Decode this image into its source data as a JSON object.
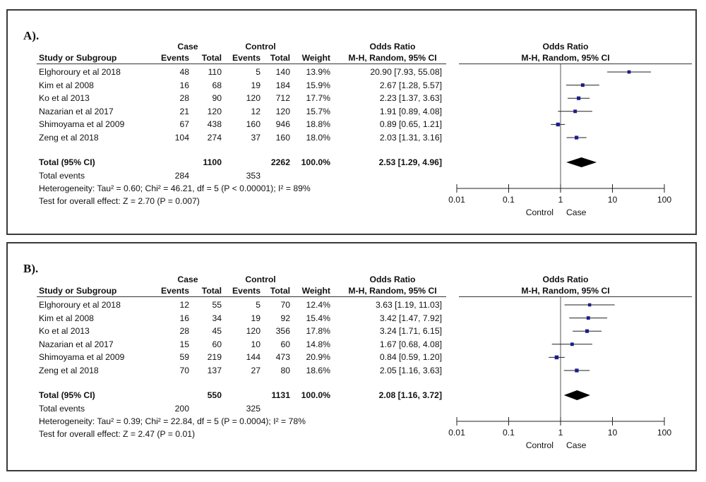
{
  "headers": {
    "case": "Case",
    "control": "Control",
    "or_top": "Odds Ratio",
    "study": "Study or Subgroup",
    "events": "Events",
    "total": "Total",
    "weight": "Weight",
    "ci": "M-H, Random, 95% CI"
  },
  "axis": {
    "ticks": [
      "0.01",
      "0.1",
      "1",
      "10",
      "100"
    ],
    "left_label": "Control",
    "right_label": "Case"
  },
  "colors": {
    "square": "#1c1c8c",
    "diamond": "#000000",
    "border": "#3a3a3a"
  },
  "chart_data": [
    {
      "panel": "A).",
      "type": "forest",
      "x_scale": "log",
      "xlim": [
        0.01,
        100
      ],
      "studies": [
        {
          "name": "Elghoroury et al 2018",
          "case_events": "48",
          "case_total": "110",
          "ctrl_events": "5",
          "ctrl_total": "140",
          "weight": "13.9%",
          "ci_text": "20.90 [7.93, 55.08]",
          "or": 20.9,
          "lo": 7.93,
          "hi": 55.08
        },
        {
          "name": "Kim et al 2008",
          "case_events": "16",
          "case_total": "68",
          "ctrl_events": "19",
          "ctrl_total": "184",
          "weight": "15.9%",
          "ci_text": "2.67 [1.28, 5.57]",
          "or": 2.67,
          "lo": 1.28,
          "hi": 5.57
        },
        {
          "name": "Ko et al 2013",
          "case_events": "28",
          "case_total": "90",
          "ctrl_events": "120",
          "ctrl_total": "712",
          "weight": "17.7%",
          "ci_text": "2.23 [1.37, 3.63]",
          "or": 2.23,
          "lo": 1.37,
          "hi": 3.63
        },
        {
          "name": "Nazarian et al 2017",
          "case_events": "21",
          "case_total": "120",
          "ctrl_events": "12",
          "ctrl_total": "120",
          "weight": "15.7%",
          "ci_text": "1.91 [0.89, 4.08]",
          "or": 1.91,
          "lo": 0.89,
          "hi": 4.08
        },
        {
          "name": "Shimoyama et al 2009",
          "case_events": "67",
          "case_total": "438",
          "ctrl_events": "160",
          "ctrl_total": "946",
          "weight": "18.8%",
          "ci_text": "0.89 [0.65, 1.21]",
          "or": 0.89,
          "lo": 0.65,
          "hi": 1.21
        },
        {
          "name": "Zeng et al 2018",
          "case_events": "104",
          "case_total": "274",
          "ctrl_events": "37",
          "ctrl_total": "160",
          "weight": "18.0%",
          "ci_text": "2.03 [1.31, 3.16]",
          "or": 2.03,
          "lo": 1.31,
          "hi": 3.16
        }
      ],
      "total": {
        "label": "Total (95% CI)",
        "case_total": "1100",
        "ctrl_total": "2262",
        "weight": "100.0%",
        "ci_text": "2.53 [1.29, 4.96]",
        "or": 2.53,
        "lo": 1.29,
        "hi": 4.96
      },
      "total_events": {
        "label": "Total events",
        "case": "284",
        "ctrl": "353"
      },
      "heterogeneity": "Heterogeneity: Tau² = 0.60; Chi² = 46.21, df = 5 (P < 0.00001); I² = 89%",
      "overall_effect": "Test for overall effect: Z = 2.70 (P = 0.007)"
    },
    {
      "panel": "B).",
      "type": "forest",
      "x_scale": "log",
      "xlim": [
        0.01,
        100
      ],
      "studies": [
        {
          "name": "Elghoroury et al 2018",
          "case_events": "12",
          "case_total": "55",
          "ctrl_events": "5",
          "ctrl_total": "70",
          "weight": "12.4%",
          "ci_text": "3.63 [1.19, 11.03]",
          "or": 3.63,
          "lo": 1.19,
          "hi": 11.03
        },
        {
          "name": "Kim et al 2008",
          "case_events": "16",
          "case_total": "34",
          "ctrl_events": "19",
          "ctrl_total": "92",
          "weight": "15.4%",
          "ci_text": "3.42 [1.47, 7.92]",
          "or": 3.42,
          "lo": 1.47,
          "hi": 7.92
        },
        {
          "name": "Ko et al 2013",
          "case_events": "28",
          "case_total": "45",
          "ctrl_events": "120",
          "ctrl_total": "356",
          "weight": "17.8%",
          "ci_text": "3.24 [1.71, 6.15]",
          "or": 3.24,
          "lo": 1.71,
          "hi": 6.15
        },
        {
          "name": "Nazarian et al 2017",
          "case_events": "15",
          "case_total": "60",
          "ctrl_events": "10",
          "ctrl_total": "60",
          "weight": "14.8%",
          "ci_text": "1.67 [0.68, 4.08]",
          "or": 1.67,
          "lo": 0.68,
          "hi": 4.08
        },
        {
          "name": "Shimoyama et al 2009",
          "case_events": "59",
          "case_total": "219",
          "ctrl_events": "144",
          "ctrl_total": "473",
          "weight": "20.9%",
          "ci_text": "0.84 [0.59, 1.20]",
          "or": 0.84,
          "lo": 0.59,
          "hi": 1.2
        },
        {
          "name": "Zeng et al 2018",
          "case_events": "70",
          "case_total": "137",
          "ctrl_events": "27",
          "ctrl_total": "80",
          "weight": "18.6%",
          "ci_text": "2.05 [1.16, 3.63]",
          "or": 2.05,
          "lo": 1.16,
          "hi": 3.63
        }
      ],
      "total": {
        "label": "Total (95% CI)",
        "case_total": "550",
        "ctrl_total": "1131",
        "weight": "100.0%",
        "ci_text": "2.08 [1.16, 3.72]",
        "or": 2.08,
        "lo": 1.16,
        "hi": 3.72
      },
      "total_events": {
        "label": "Total events",
        "case": "200",
        "ctrl": "325"
      },
      "heterogeneity": "Heterogeneity: Tau² = 0.39; Chi² = 22.84, df = 5 (P = 0.0004); I² = 78%",
      "overall_effect": "Test for overall effect: Z = 2.47 (P = 0.01)"
    }
  ]
}
